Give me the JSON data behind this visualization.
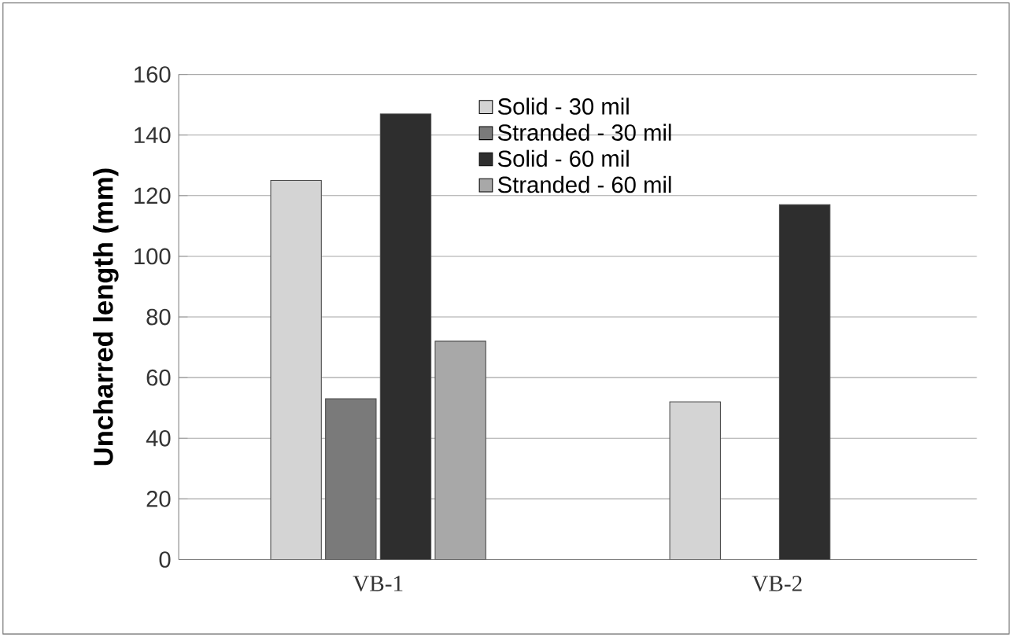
{
  "chart_data": {
    "type": "bar",
    "ylabel": "Uncharred length (mm)",
    "categories": [
      "VB-1",
      "VB-2"
    ],
    "series": [
      {
        "name": "Solid - 30 mil",
        "color": "#d4d4d4",
        "values": [
          125,
          52
        ]
      },
      {
        "name": "Stranded - 30 mil",
        "color": "#7a7a7a",
        "values": [
          53,
          null
        ]
      },
      {
        "name": "Solid - 60 mil",
        "color": "#2e2e2e",
        "values": [
          147,
          117
        ]
      },
      {
        "name": "Stranded - 60 mil",
        "color": "#a8a8a8",
        "values": [
          72,
          null
        ]
      }
    ],
    "ylim": [
      0,
      160
    ],
    "yticks": [
      0,
      20,
      40,
      60,
      80,
      100,
      120,
      140,
      160
    ],
    "grid": "y",
    "legend": "top"
  }
}
